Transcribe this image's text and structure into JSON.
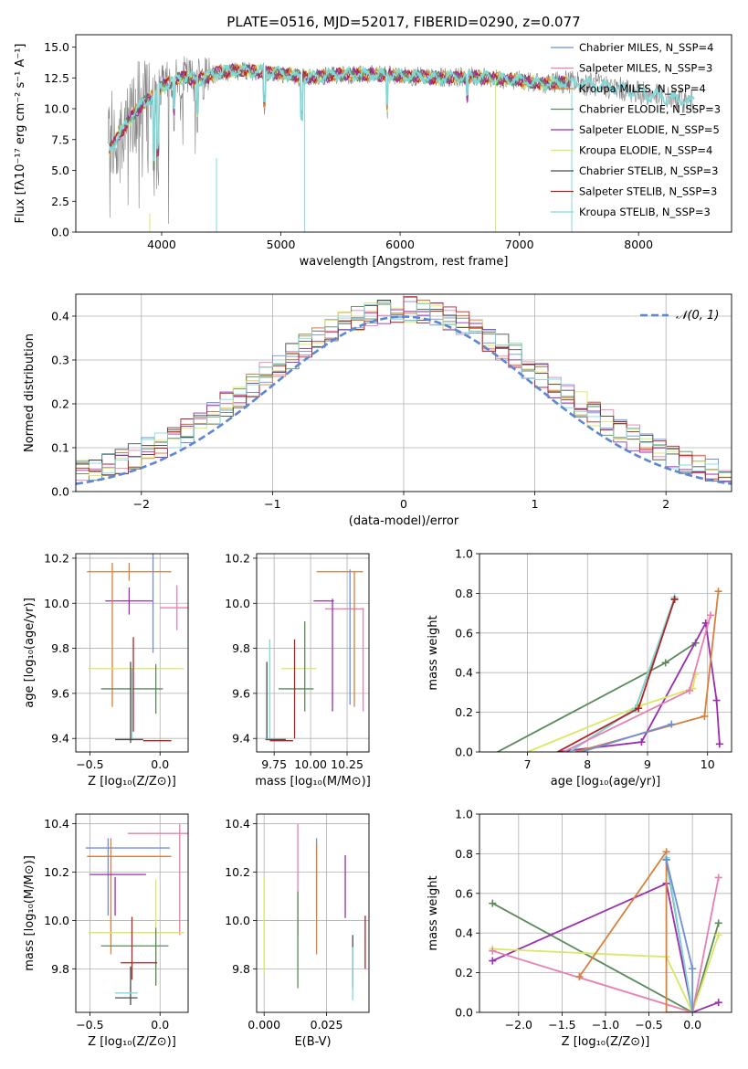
{
  "colors": {
    "chabrier_miles": "#6F8FD8",
    "salpeter_miles": "#E87FB0",
    "kroupa_miles": "#D8803A",
    "chabrier_elodie": "#5A8A5A",
    "salpeter_elodie": "#9B2DB0",
    "kroupa_elodie": "#D9E860",
    "chabrier_stelib": "#4A4A4A",
    "salpeter_stelib": "#B22222",
    "kroupa_stelib": "#7FD9D9",
    "data": "#808080",
    "gauss": "#5B87D6"
  },
  "chart_data": [
    {
      "id": "spectrum",
      "type": "line",
      "title": "PLATE=0516, MJD=52017, FIBERID=0290, z=0.077",
      "xlabel": "wavelength [Angstrom, rest frame]",
      "ylabel": "Flux [fλ10⁻¹⁷ erg cm⁻² s⁻¹ A⁻¹]",
      "xlim": [
        3280,
        8780
      ],
      "ylim": [
        0,
        16
      ],
      "xticks": [
        4000,
        5000,
        6000,
        7000,
        8000
      ],
      "yticks": [
        0.0,
        2.5,
        5.0,
        7.5,
        10.0,
        12.5,
        15.0
      ],
      "grid": false,
      "legend_position": "right",
      "legend": [
        {
          "name": "Chabrier MILES, N_SSP=4",
          "key": "chabrier_miles"
        },
        {
          "name": "Salpeter MILES, N_SSP=3",
          "key": "salpeter_miles"
        },
        {
          "name": "Kroupa MILES, N_SSP=4",
          "key": "kroupa_miles"
        },
        {
          "name": "Chabrier ELODIE, N_SSP=3",
          "key": "chabrier_elodie"
        },
        {
          "name": "Salpeter ELODIE, N_SSP=5",
          "key": "salpeter_elodie"
        },
        {
          "name": "Kroupa ELODIE, N_SSP=4",
          "key": "kroupa_elodie"
        },
        {
          "name": "Chabrier STELIB, N_SSP=3",
          "key": "chabrier_stelib"
        },
        {
          "name": "Salpeter STELIB, N_SSP=3",
          "key": "salpeter_stelib"
        },
        {
          "name": "Kroupa STELIB, N_SSP=3",
          "key": "kroupa_stelib"
        }
      ],
      "continuum": [
        [
          3550,
          6.5
        ],
        [
          3650,
          8.0
        ],
        [
          3800,
          10.0
        ],
        [
          3900,
          10.8
        ],
        [
          4000,
          11.8
        ],
        [
          4100,
          12.3
        ],
        [
          4200,
          12.6
        ],
        [
          4300,
          12.3
        ],
        [
          4500,
          13.0
        ],
        [
          4700,
          13.1
        ],
        [
          5000,
          12.9
        ],
        [
          5200,
          12.5
        ],
        [
          5500,
          12.8
        ],
        [
          6000,
          12.7
        ],
        [
          6300,
          12.5
        ],
        [
          6600,
          12.6
        ],
        [
          7000,
          12.3
        ],
        [
          7200,
          12.0
        ],
        [
          7400,
          12.2
        ],
        [
          7600,
          12.0
        ],
        [
          7800,
          11.7
        ],
        [
          8000,
          11.3
        ],
        [
          8200,
          11.0
        ],
        [
          8400,
          10.6
        ]
      ]
    },
    {
      "id": "residuals",
      "type": "step",
      "xlabel": "(data-model)/error",
      "ylabel": "Normed distribution",
      "xlim": [
        -2.5,
        2.5
      ],
      "ylim": [
        0,
        0.45
      ],
      "xticks": [
        -2,
        -1,
        0,
        1,
        2
      ],
      "yticks": [
        0.0,
        0.1,
        0.2,
        0.3,
        0.4
      ],
      "grid": true,
      "legend_position": "top-right",
      "legend": [
        {
          "name": "𝒩(0, 1)",
          "key": "gauss"
        }
      ],
      "gaussian": {
        "mean": 0,
        "sigma": 1
      }
    },
    {
      "id": "age_vs_z",
      "type": "errorbar",
      "xlabel": "Z [log₁₀(Z/Z⊙)]",
      "ylabel": "age  [log₁₀(age/yr)]",
      "xlim": [
        -0.6,
        0.2
      ],
      "ylim": [
        9.34,
        10.22
      ],
      "xticks": [
        -0.5,
        0.0
      ],
      "yticks": [
        9.4,
        9.6,
        9.8,
        10.0,
        10.2
      ],
      "grid": true,
      "points": [
        {
          "key": "kroupa_miles",
          "x": -0.22,
          "y": 10.14,
          "xerr": 0.3,
          "yerr": 0.04
        },
        {
          "key": "salpeter_elodie",
          "x": -0.22,
          "y": 10.01,
          "xerr": 0.17,
          "yerr": 0.06
        },
        {
          "key": "salpeter_miles",
          "x": 0.12,
          "y": 9.98,
          "xerr": 0.12,
          "yerr": 0.1
        },
        {
          "key": "chabrier_miles",
          "x": -0.05,
          "y": 10.02,
          "xerr": 0.0,
          "yerr": 0.24
        },
        {
          "key": "kroupa_miles",
          "x": -0.34,
          "y": 9.86,
          "xerr": 0.0,
          "yerr": 0.32
        },
        {
          "key": "kroupa_elodie",
          "x": -0.17,
          "y": 9.71,
          "xerr": 0.34,
          "yerr": 0.0
        },
        {
          "key": "chabrier_elodie",
          "x": -0.2,
          "y": 9.62,
          "xerr": 0.22,
          "yerr": 0.0
        },
        {
          "key": "chabrier_elodie",
          "x": -0.03,
          "y": 9.62,
          "xerr": 0.0,
          "yerr": 0.11
        },
        {
          "key": "salpeter_stelib",
          "x": -0.19,
          "y": 9.64,
          "xerr": 0.0,
          "yerr": 0.21
        },
        {
          "key": "chabrier_stelib",
          "x": -0.21,
          "y": 9.56,
          "xerr": 0.0,
          "yerr": 0.18
        },
        {
          "key": "kroupa_stelib",
          "x": -0.2,
          "y": 9.55,
          "xerr": 0.0,
          "yerr": 0.16
        },
        {
          "key": "chabrier_stelib",
          "x": -0.22,
          "y": 9.395,
          "xerr": 0.1,
          "yerr": 0.0
        },
        {
          "key": "salpeter_stelib",
          "x": -0.02,
          "y": 9.39,
          "xerr": 0.1,
          "yerr": 0.0
        }
      ]
    },
    {
      "id": "age_vs_mass",
      "type": "errorbar",
      "xlabel": "mass [log₁₀(M/M⊙)]",
      "ylabel": "",
      "xlim": [
        9.63,
        10.4
      ],
      "ylim": [
        9.34,
        10.22
      ],
      "xticks": [
        9.75,
        10.0,
        10.25
      ],
      "xticklabels": [
        "9.75",
        "10.00",
        "10.25"
      ],
      "yticks": [
        9.4,
        9.6,
        9.8,
        10.0,
        10.2
      ],
      "grid": true,
      "points": [
        {
          "key": "kroupa_miles",
          "x": 10.2,
          "y": 10.14,
          "xerr": 0.16,
          "yerr": 0.0
        },
        {
          "key": "salpeter_elodie",
          "x": 10.09,
          "y": 10.01,
          "xerr": 0.07,
          "yerr": 0.0
        },
        {
          "key": "salpeter_miles",
          "x": 10.23,
          "y": 9.975,
          "xerr": 0.13,
          "yerr": 0.0
        },
        {
          "key": "kroupa_miles",
          "x": 10.3,
          "y": 9.84,
          "xerr": 0.0,
          "yerr": 0.3
        },
        {
          "key": "chabrier_miles",
          "x": 10.27,
          "y": 9.85,
          "xerr": 0.0,
          "yerr": 0.3
        },
        {
          "key": "salpeter_miles",
          "x": 10.36,
          "y": 9.75,
          "xerr": 0.0,
          "yerr": 0.23
        },
        {
          "key": "salpeter_elodie",
          "x": 10.15,
          "y": 9.77,
          "xerr": 0.0,
          "yerr": 0.25
        },
        {
          "key": "kroupa_elodie",
          "x": 9.92,
          "y": 9.71,
          "xerr": 0.12,
          "yerr": 0.0
        },
        {
          "key": "chabrier_elodie",
          "x": 9.96,
          "y": 9.72,
          "xerr": 0.0,
          "yerr": 0.2
        },
        {
          "key": "chabrier_elodie",
          "x": 9.9,
          "y": 9.62,
          "xerr": 0.12,
          "yerr": 0.0
        },
        {
          "key": "salpeter_stelib",
          "x": 9.89,
          "y": 9.62,
          "xerr": 0.0,
          "yerr": 0.22
        },
        {
          "key": "kroupa_stelib",
          "x": 9.72,
          "y": 9.62,
          "xerr": 0.0,
          "yerr": 0.22
        },
        {
          "key": "chabrier_stelib",
          "x": 9.7,
          "y": 9.57,
          "xerr": 0.0,
          "yerr": 0.17
        },
        {
          "key": "chabrier_stelib",
          "x": 9.76,
          "y": 9.395,
          "xerr": 0.07,
          "yerr": 0.0
        },
        {
          "key": "salpeter_stelib",
          "x": 9.8,
          "y": 9.39,
          "xerr": 0.08,
          "yerr": 0.0
        }
      ]
    },
    {
      "id": "weight_vs_age",
      "type": "line",
      "xlabel": "age  [log₁₀(age/yr)]",
      "ylabel": "mass weight",
      "xlim": [
        6.2,
        10.4
      ],
      "ylim": [
        0,
        1.0
      ],
      "xticks": [
        7,
        8,
        9,
        10
      ],
      "yticks": [
        0.0,
        0.2,
        0.4,
        0.6,
        0.8,
        1.0
      ],
      "grid": true,
      "series": [
        {
          "key": "chabrier_elodie",
          "points": [
            [
              6.5,
              0.0
            ],
            [
              9.3,
              0.45
            ],
            [
              9.8,
              0.55
            ]
          ]
        },
        {
          "key": "salpeter_elodie",
          "points": [
            [
              7.5,
              0.0
            ],
            [
              8.9,
              0.05
            ],
            [
              9.97,
              0.65
            ],
            [
              10.15,
              0.26
            ],
            [
              10.2,
              0.04
            ]
          ]
        },
        {
          "key": "kroupa_elodie",
          "points": [
            [
              7.0,
              0.0
            ],
            [
              8.85,
              0.23
            ],
            [
              9.75,
              0.32
            ],
            [
              9.8,
              0.39
            ]
          ]
        },
        {
          "key": "chabrier_stelib",
          "points": [
            [
              7.7,
              0.0
            ],
            [
              8.8,
              0.22
            ],
            [
              9.45,
              0.77
            ]
          ]
        },
        {
          "key": "kroupa_stelib",
          "points": [
            [
              7.7,
              0.0
            ],
            [
              8.8,
              0.22
            ],
            [
              9.45,
              0.78
            ]
          ]
        },
        {
          "key": "salpeter_stelib",
          "points": [
            [
              7.5,
              0.0
            ],
            [
              8.85,
              0.22
            ],
            [
              9.45,
              0.77
            ]
          ]
        },
        {
          "key": "kroupa_miles",
          "points": [
            [
              7.8,
              0.0
            ],
            [
              9.95,
              0.18
            ],
            [
              10.18,
              0.81
            ]
          ]
        },
        {
          "key": "salpeter_miles",
          "points": [
            [
              7.6,
              0.0
            ],
            [
              9.7,
              0.31
            ],
            [
              10.05,
              0.69
            ]
          ]
        },
        {
          "key": "chabrier_miles",
          "points": [
            [
              7.9,
              0.0
            ],
            [
              9.4,
              0.14
            ]
          ]
        }
      ]
    },
    {
      "id": "mass_vs_z",
      "type": "errorbar",
      "xlabel": "Z [log₁₀(Z/Z⊙)]",
      "ylabel": "mass [log₁₀(M/M⊙)]",
      "xlim": [
        -0.6,
        0.2
      ],
      "ylim": [
        9.62,
        10.44
      ],
      "xticks": [
        -0.5,
        0.0
      ],
      "yticks": [
        9.8,
        10.0,
        10.2,
        10.4
      ],
      "grid": true,
      "points": [
        {
          "key": "salpeter_miles",
          "x": 0.04,
          "y": 10.36,
          "xerr": 0.27,
          "yerr": 0.0
        },
        {
          "key": "salpeter_miles",
          "x": 0.14,
          "y": 10.17,
          "xerr": 0.0,
          "yerr": 0.23
        },
        {
          "key": "chabrier_miles",
          "x": -0.23,
          "y": 10.3,
          "xerr": 0.3,
          "yerr": 0.0
        },
        {
          "key": "kroupa_miles",
          "x": -0.22,
          "y": 10.265,
          "xerr": 0.3,
          "yerr": 0.0
        },
        {
          "key": "chabrier_miles",
          "x": -0.37,
          "y": 10.18,
          "xerr": 0.0,
          "yerr": 0.16
        },
        {
          "key": "kroupa_miles",
          "x": -0.35,
          "y": 10.1,
          "xerr": 0.0,
          "yerr": 0.24
        },
        {
          "key": "salpeter_elodie",
          "x": -0.3,
          "y": 10.19,
          "xerr": 0.2,
          "yerr": 0.0
        },
        {
          "key": "salpeter_elodie",
          "x": -0.32,
          "y": 10.1,
          "xerr": 0.0,
          "yerr": 0.08
        },
        {
          "key": "kroupa_elodie",
          "x": -0.17,
          "y": 9.95,
          "xerr": 0.34,
          "yerr": 0.0
        },
        {
          "key": "kroupa_elodie",
          "x": -0.03,
          "y": 9.95,
          "xerr": 0.0,
          "yerr": 0.22
        },
        {
          "key": "chabrier_elodie",
          "x": -0.18,
          "y": 9.895,
          "xerr": 0.24,
          "yerr": 0.0
        },
        {
          "key": "chabrier_elodie",
          "x": -0.03,
          "y": 9.85,
          "xerr": 0.0,
          "yerr": 0.12
        },
        {
          "key": "salpeter_stelib",
          "x": -0.2,
          "y": 9.885,
          "xerr": 0.0,
          "yerr": 0.13
        },
        {
          "key": "salpeter_stelib",
          "x": -0.15,
          "y": 9.825,
          "xerr": 0.13,
          "yerr": 0.0
        },
        {
          "key": "chabrier_stelib",
          "x": -0.21,
          "y": 9.73,
          "xerr": 0.0,
          "yerr": 0.08
        },
        {
          "key": "kroupa_stelib",
          "x": -0.24,
          "y": 9.7,
          "xerr": 0.08,
          "yerr": 0.0
        },
        {
          "key": "chabrier_stelib",
          "x": -0.24,
          "y": 9.68,
          "xerr": 0.08,
          "yerr": 0.0
        }
      ]
    },
    {
      "id": "mass_vs_ebv",
      "type": "errorbar",
      "xlabel": "E(B-V)",
      "ylabel": "",
      "xlim": [
        -0.003,
        0.042
      ],
      "ylim": [
        9.62,
        10.44
      ],
      "xticks": [
        0.0,
        0.025
      ],
      "xticklabels": [
        "0.000",
        "0.025"
      ],
      "yticks": [
        9.8,
        10.0,
        10.2,
        10.4
      ],
      "grid": true,
      "points": [
        {
          "key": "kroupa_elodie",
          "x": 0.0,
          "y": 9.98,
          "xerr": 0.0,
          "yerr": 0.2
        },
        {
          "key": "salpeter_miles",
          "x": 0.0135,
          "y": 10.17,
          "xerr": 0.0,
          "yerr": 0.23
        },
        {
          "key": "chabrier_elodie",
          "x": 0.0135,
          "y": 9.92,
          "xerr": 0.0,
          "yerr": 0.2
        },
        {
          "key": "chabrier_miles",
          "x": 0.021,
          "y": 10.18,
          "xerr": 0.0,
          "yerr": 0.16
        },
        {
          "key": "kroupa_miles",
          "x": 0.021,
          "y": 10.09,
          "xerr": 0.0,
          "yerr": 0.23
        },
        {
          "key": "salpeter_elodie",
          "x": 0.0325,
          "y": 10.14,
          "xerr": 0.0,
          "yerr": 0.13
        },
        {
          "key": "chabrier_stelib",
          "x": 0.0355,
          "y": 9.83,
          "xerr": 0.0,
          "yerr": 0.11
        },
        {
          "key": "kroupa_stelib",
          "x": 0.0355,
          "y": 9.78,
          "xerr": 0.0,
          "yerr": 0.11
        },
        {
          "key": "salpeter_stelib",
          "x": 0.0405,
          "y": 9.91,
          "xerr": 0.0,
          "yerr": 0.11
        }
      ]
    },
    {
      "id": "weight_vs_z",
      "type": "line",
      "xlabel": "Z [log₁₀(Z/Z⊙)]",
      "ylabel": "mass weight",
      "xlim": [
        -2.45,
        0.45
      ],
      "ylim": [
        0,
        1.0
      ],
      "xticks": [
        -2.0,
        -1.5,
        -1.0,
        -0.5,
        0.0
      ],
      "yticks": [
        0.0,
        0.2,
        0.4,
        0.6,
        0.8,
        1.0
      ],
      "grid": true,
      "series": [
        {
          "key": "chabrier_elodie",
          "points": [
            [
              -2.3,
              0.55
            ],
            [
              0.0,
              0.0
            ],
            [
              0.3,
              0.45
            ]
          ]
        },
        {
          "key": "salpeter_elodie",
          "points": [
            [
              -2.3,
              0.26
            ],
            [
              -0.3,
              0.65
            ],
            [
              0.0,
              0.0
            ],
            [
              0.3,
              0.05
            ]
          ]
        },
        {
          "key": "kroupa_elodie",
          "points": [
            [
              -2.3,
              0.32
            ],
            [
              -0.3,
              0.28
            ],
            [
              0.0,
              0.0
            ],
            [
              0.3,
              0.39
            ]
          ]
        },
        {
          "key": "salpeter_miles",
          "points": [
            [
              -2.3,
              0.31
            ],
            [
              0.0,
              0.0
            ],
            [
              0.3,
              0.68
            ]
          ]
        },
        {
          "key": "kroupa_miles",
          "points": [
            [
              -1.3,
              0.18
            ],
            [
              -0.3,
              0.81
            ],
            [
              -0.3,
              0.0
            ],
            [
              0.0,
              0.0
            ]
          ]
        },
        {
          "key": "chabrier_stelib",
          "points": [
            [
              -0.3,
              0.77
            ],
            [
              0.0,
              0.0
            ]
          ]
        },
        {
          "key": "kroupa_stelib",
          "points": [
            [
              -0.3,
              0.78
            ],
            [
              0.0,
              0.0
            ]
          ]
        },
        {
          "key": "chabrier_miles",
          "points": [
            [
              -0.3,
              0.77
            ],
            [
              0.0,
              0.22
            ],
            [
              0.0,
              0.0
            ]
          ]
        }
      ]
    }
  ]
}
